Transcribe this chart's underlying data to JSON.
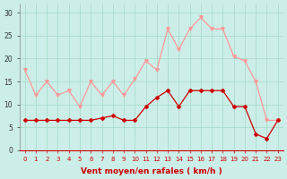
{
  "x": [
    0,
    1,
    2,
    3,
    4,
    5,
    6,
    7,
    8,
    9,
    10,
    11,
    12,
    13,
    14,
    15,
    16,
    17,
    18,
    19,
    20,
    21,
    22,
    23
  ],
  "vent_moyen": [
    6.5,
    6.5,
    6.5,
    6.5,
    6.5,
    6.5,
    6.5,
    7.0,
    7.5,
    6.5,
    6.5,
    9.5,
    11.5,
    13.0,
    9.5,
    13.0,
    13.0,
    13.0,
    13.0,
    9.5,
    9.5,
    3.5,
    2.5,
    6.5
  ],
  "rafales": [
    17.5,
    12.0,
    15.0,
    12.0,
    13.0,
    9.5,
    15.0,
    12.0,
    15.0,
    12.0,
    15.5,
    19.5,
    17.5,
    26.5,
    22.0,
    26.5,
    29.0,
    26.5,
    26.5,
    20.5,
    19.5,
    15.0,
    6.5,
    6.5
  ],
  "bg_color": "#cceee8",
  "grid_color": "#aaddcc",
  "moyen_color": "#cc0000",
  "rafales_color": "#ff9999",
  "xlabel": "Vent moyen/en rafales ( km/h )",
  "ylim": [
    0,
    32
  ],
  "yticks": [
    0,
    5,
    10,
    15,
    20,
    25,
    30
  ],
  "xticks": [
    0,
    1,
    2,
    3,
    4,
    5,
    6,
    7,
    8,
    9,
    10,
    11,
    12,
    13,
    14,
    15,
    16,
    17,
    18,
    19,
    20,
    21,
    22,
    23
  ]
}
